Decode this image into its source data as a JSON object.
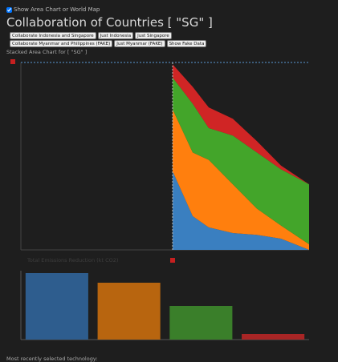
{
  "toggle": {
    "label": "Show Area Chart or World Map"
  },
  "title": "Collaboration of Countries [ \"SG\" ]",
  "buttons": [
    [
      "Collaborate Indonesia and Singapore",
      "Just Indonesia",
      "Just Singapore"
    ],
    [
      "Collaborate Myanmar and Philippines (FAKE)",
      "Just Myanmar (FAKE)",
      "Show Fake Data"
    ]
  ],
  "area_label": "Stacked Area Chart for [ \"SG\" ]",
  "bar_label": "Total Emissions Reduction (kt CO2)",
  "footer": "Most recently selected technology:",
  "chart_data": [
    {
      "type": "stacked_area",
      "x": [
        189,
        214,
        234,
        264,
        294,
        324,
        359
      ],
      "xlim": [
        0,
        359
      ],
      "ylim": [
        0,
        100
      ],
      "series": [
        {
          "color": "#3a7fc0",
          "values": [
            42,
            18,
            12,
            9,
            8,
            6,
            0
          ]
        },
        {
          "color": "#ff7f0e",
          "values": [
            33,
            34,
            36,
            26,
            14,
            7,
            3
          ]
        },
        {
          "color": "#43a52a",
          "values": [
            17,
            26,
            17,
            26,
            30,
            30,
            32
          ]
        },
        {
          "color": "#d02525",
          "values": [
            7,
            9,
            11,
            9,
            6,
            2,
            0
          ]
        }
      ]
    },
    {
      "type": "bar",
      "categories": [
        null,
        null,
        null,
        null
      ],
      "values": [
        83,
        71,
        42,
        7
      ],
      "colors": [
        "#2e5d8e",
        "#b8650f",
        "#3a7f2a",
        "#a82525"
      ],
      "ylim": [
        0,
        90
      ]
    }
  ]
}
